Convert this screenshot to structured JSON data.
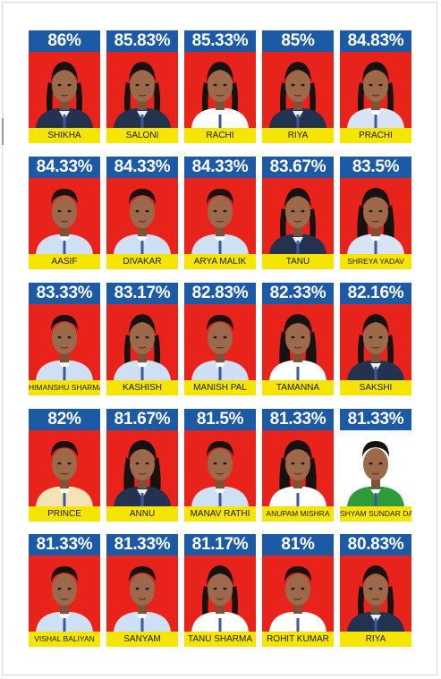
{
  "colors": {
    "percent_bar": "#1c5aa6",
    "photo_background": "#e7231c",
    "name_bar": "#f5e500"
  },
  "students": [
    {
      "percent": "86%",
      "name": "SHIKHA",
      "hair": "braids",
      "uniform": "#23324f"
    },
    {
      "percent": "85.83%",
      "name": "SALONI",
      "hair": "braids",
      "uniform": "#23324f"
    },
    {
      "percent": "85.33%",
      "name": "RACHI",
      "hair": "braids",
      "uniform": "#ffffff"
    },
    {
      "percent": "85%",
      "name": "RIYA",
      "hair": "braids",
      "uniform": "#23324f"
    },
    {
      "percent": "84.83%",
      "name": "PRACHI",
      "hair": "braids",
      "uniform": "#d8e4f5"
    },
    {
      "percent": "84.33%",
      "name": "AASIF",
      "hair": "short",
      "uniform": "#cfe0f5"
    },
    {
      "percent": "84.33%",
      "name": "DIVAKAR",
      "hair": "short",
      "uniform": "#cfe0f5"
    },
    {
      "percent": "84.33%",
      "name": "ARYA MALIK",
      "hair": "short",
      "uniform": "#cfe0f5"
    },
    {
      "percent": "83.67%",
      "name": "TANU",
      "hair": "braids",
      "uniform": "#23324f"
    },
    {
      "percent": "83.5%",
      "name": "SHREYA YADAV",
      "hair": "long",
      "uniform": "#d8e4f5"
    },
    {
      "percent": "83.33%",
      "name": "HIMANSHU SHARMA",
      "hair": "short",
      "uniform": "#cfe0f5"
    },
    {
      "percent": "83.17%",
      "name": "KASHISH",
      "hair": "braids",
      "uniform": "#cfe0f5"
    },
    {
      "percent": "82.83%",
      "name": "MANISH PAL",
      "hair": "short",
      "uniform": "#cfe0f5"
    },
    {
      "percent": "82.33%",
      "name": "TAMANNA",
      "hair": "long",
      "uniform": "#ffffff"
    },
    {
      "percent": "82.16%",
      "name": "SAKSHI",
      "hair": "braids",
      "uniform": "#23324f"
    },
    {
      "percent": "82%",
      "name": "PRINCE",
      "hair": "short",
      "uniform": "#f3e3b5"
    },
    {
      "percent": "81.67%",
      "name": "ANNU",
      "hair": "long",
      "uniform": "#23324f"
    },
    {
      "percent": "81.5%",
      "name": "MANAV RATHI",
      "hair": "short",
      "uniform": "#cfe0f5"
    },
    {
      "percent": "81.33%",
      "name": "ANUPAM MISHRA",
      "hair": "long",
      "uniform": "#ffffff"
    },
    {
      "percent": "81.33%",
      "name": "SHYAM SUNDAR DAS",
      "hair": "short",
      "uniform": "#2e9a3c",
      "background": "#ffffff"
    },
    {
      "percent": "81.33%",
      "name": "VISHAL BALIYAN",
      "hair": "short",
      "uniform": "#cfe0f5"
    },
    {
      "percent": "81.33%",
      "name": "SANYAM",
      "hair": "short",
      "uniform": "#cfe0f5"
    },
    {
      "percent": "81.17%",
      "name": "TANU SHARMA",
      "hair": "braids",
      "uniform": "#ffffff"
    },
    {
      "percent": "81%",
      "name": "ROHIT KUMAR",
      "hair": "short",
      "uniform": "#ffffff"
    },
    {
      "percent": "80.83%",
      "name": "RIYA",
      "hair": "braids",
      "uniform": "#23324f"
    }
  ]
}
